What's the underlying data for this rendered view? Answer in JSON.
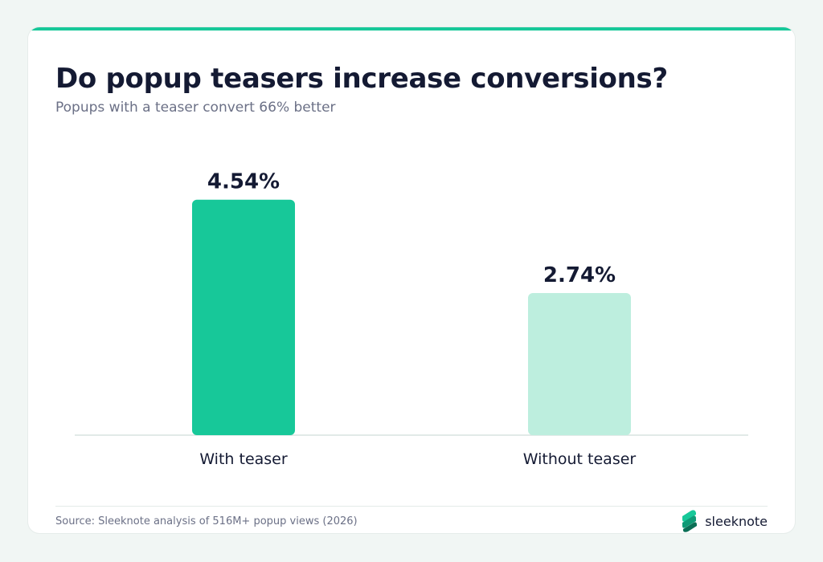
{
  "header": {
    "title": "Do popup teasers increase conversions?",
    "subtitle": "Popups with a teaser convert 66% better"
  },
  "footer": {
    "source": "Source: Sleeknote analysis of 516M+ popup views (2026)",
    "brand": "sleeknote",
    "logo_icon": "sleeknote-logo-icon"
  },
  "colors": {
    "accent": "#17c899",
    "bar_primary": "#17c899",
    "bar_secondary": "#bdeede",
    "text": "#141a33"
  },
  "chart_data": {
    "type": "bar",
    "title": "Do popup teasers increase conversions?",
    "subtitle": "Popups with a teaser convert 66% better",
    "categories": [
      "With teaser",
      "Without teaser"
    ],
    "values": [
      4.54,
      2.74
    ],
    "value_labels": [
      "4.54%",
      "2.74%"
    ],
    "xlabel": "",
    "ylabel": "",
    "ylim": [
      0,
      5
    ],
    "grid": false,
    "legend": "none"
  }
}
